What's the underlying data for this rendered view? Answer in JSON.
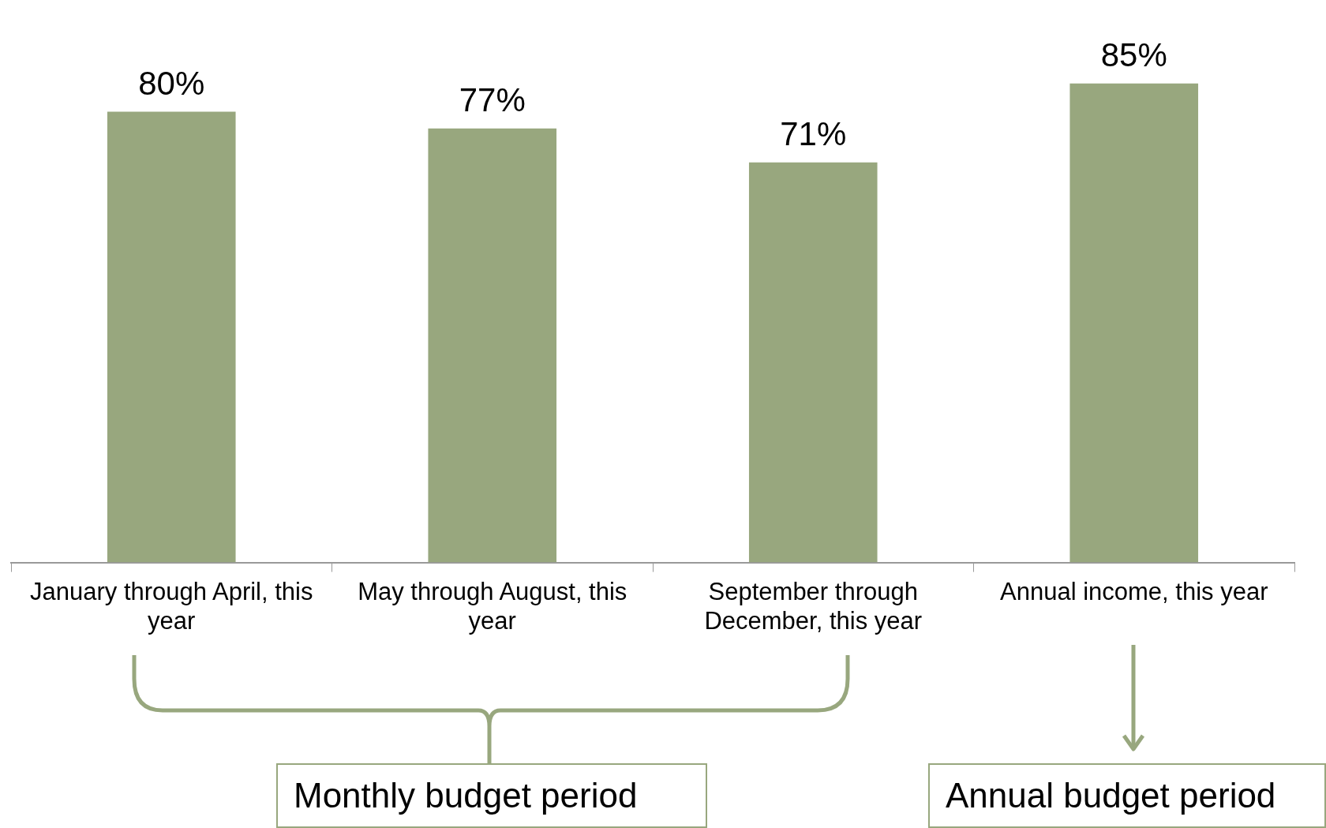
{
  "chart_data": {
    "type": "bar",
    "categories": [
      "January through April, this year",
      "May through August, this year",
      "September through December, this year",
      "Annual income, this year"
    ],
    "values": [
      80,
      77,
      71,
      85
    ],
    "color": "#98a77e",
    "value_labels": [
      "80%",
      "77%",
      "71%",
      "85%"
    ],
    "annotations": [
      "Monthly budget period",
      "Annual budget period"
    ],
    "legend": false,
    "grid": false
  }
}
